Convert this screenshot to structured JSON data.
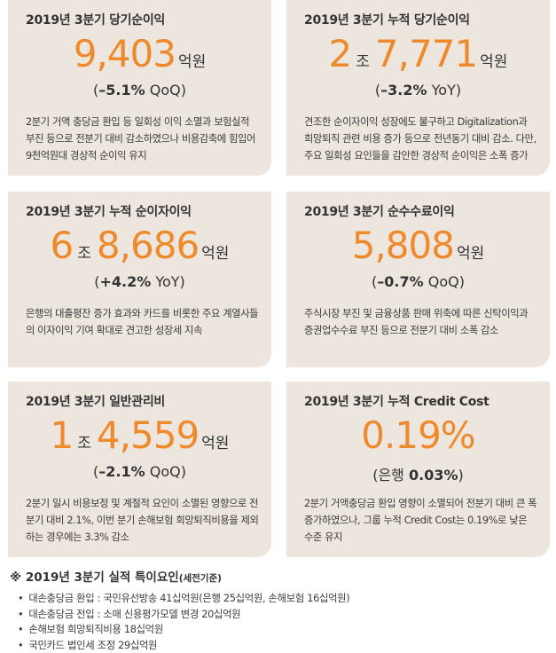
{
  "cards": [
    {
      "title": "2019년 3분기 당기순이익",
      "value": "9,403",
      "unit": "억원",
      "change": "(–5.1% QoQ)",
      "change_value": "–5.1%",
      "change_suffix": "QoQ",
      "description": "2분기 거액 충당금 환입 등 일회성 이익 소멸과 보험실적 부진 등으로 전분기 대비 감소하였으나 비용감축에 힘입어 9천억원대 경상적 순이익 유지"
    },
    {
      "title": "2019년 3분기 누적 당기순이익",
      "value_jo": "2",
      "jo_unit": "조",
      "value": "7,771",
      "unit": "억원",
      "change_value": "–3.2%",
      "change_suffix": "YoY",
      "description": "견조한 순이자이익 성장에도 불구하고 Digitalization과 희망퇴직 관련 비용 증가 등으로 전년동기 대비 감소. 다만, 주요 일회성 요인들을 감안한 경상적 순이익은 소폭 증가"
    },
    {
      "title": "2019년 3분기 누적 순이자이익",
      "value_jo": "6",
      "jo_unit": "조",
      "value": "8,686",
      "unit": "억원",
      "change_value": "+4.2%",
      "change_suffix": "YoY",
      "description": "은행의 대출평잔 증가 효과와 카드를 비롯한 주요 계열사들의 이자이익 기여 확대로 견고한 성장세 지속"
    },
    {
      "title": "2019년 3분기 순수수료이익",
      "value": "5,808",
      "unit": "억원",
      "change_value": "–0.7%",
      "change_suffix": "QoQ",
      "description": "주식시장 부진 및 금융상품 판매 위축에 따른 신탁이익과 증권업수수료 부진 등으로 전분기 대비 소폭 감소"
    },
    {
      "title": "2019년 3분기 일반관리비",
      "value_jo": "1",
      "jo_unit": "조",
      "value": "4,559",
      "unit": "억원",
      "change_value": "–2.1%",
      "change_suffix": "QoQ",
      "description": "2분기 일시 비용보정 및 계절적 요인이 소멸된 영향으로 전분기 대비 2.1%, 이번 분기 손해보험 희망퇴직비용을 제외하는 경우에는 3.3% 감소"
    },
    {
      "title": "2019년 3분기 누적 Credit Cost",
      "value": "0.19%",
      "change_prefix": "(은행",
      "change_value": "0.03%",
      "description": "2분기 거액충당금 환입 영향이 소멸되어 전분기 대비 큰 폭 증가하였으나, 그룹 누적 Credit Cost는 0.19%로 낮은 수준 유지"
    }
  ],
  "notes": {
    "mark": "※",
    "title": "2019년 3분기 실적 특이요인",
    "title_note": "(세전기준)",
    "bullet": "•",
    "items": [
      "대손충당금 환입 : 국민유선방송 41십억원(은행 25십억원, 손해보험 16십억원)",
      "대손충당금 전입 : 소매 신용평가모델 변경 20십억원",
      "손해보험 희망퇴직비용 18십억원",
      "국민카드 법인세 조정 29십억원"
    ]
  },
  "colors": {
    "accent": "#ef8a2c",
    "card_bg": "#ede6df",
    "text": "#333333"
  }
}
